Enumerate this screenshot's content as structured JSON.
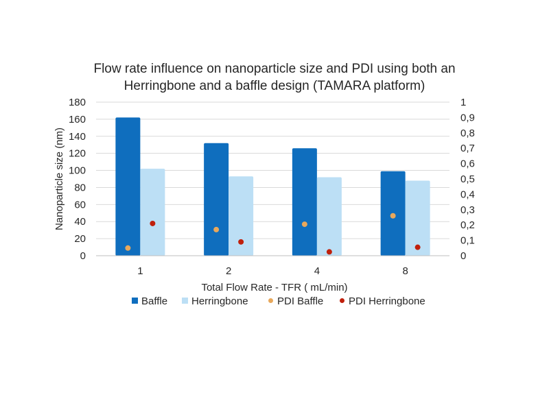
{
  "chart_data": {
    "type": "bar",
    "title_lines": [
      "Flow rate influence on nanoparticle size and PDI using both an",
      "Herringbone and a baffle design (TAMARA platform)"
    ],
    "xlabel": "Total Flow Rate - TFR ( mL/min)",
    "ylabel": "Nanoparticle size (nm)",
    "categories": [
      "1",
      "2",
      "4",
      "8"
    ],
    "ylim": [
      0,
      180
    ],
    "yticks": [
      "0",
      "20",
      "40",
      "60",
      "80",
      "100",
      "120",
      "140",
      "160",
      "180"
    ],
    "y2lim": [
      0,
      1
    ],
    "y2ticks": [
      "0",
      "0,1",
      "0,2",
      "0,3",
      "0,4",
      "0,5",
      "0,6",
      "0,7",
      "0,8",
      "0,9",
      "1"
    ],
    "grid": true,
    "legend_position": "bottom",
    "series": [
      {
        "name": "Baffle",
        "type": "bar",
        "axis": "left",
        "color": "#0f6ebe",
        "values": [
          162,
          132,
          126,
          99
        ]
      },
      {
        "name": "Herringbone",
        "type": "bar",
        "axis": "left",
        "color": "#bcdff5",
        "values": [
          102,
          93,
          92,
          88
        ]
      },
      {
        "name": "PDI Baffle",
        "type": "scatter",
        "axis": "right",
        "color": "#e8a85c",
        "values": [
          0.05,
          0.17,
          0.205,
          0.26
        ]
      },
      {
        "name": "PDI Herringbone",
        "type": "scatter",
        "axis": "right",
        "color": "#c0200c",
        "values": [
          0.21,
          0.09,
          0.025,
          0.055
        ]
      }
    ]
  }
}
